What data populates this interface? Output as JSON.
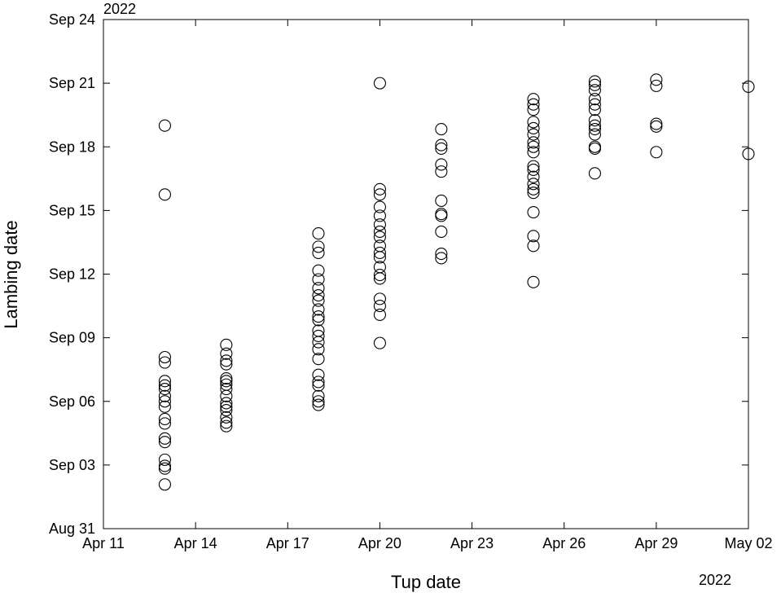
{
  "chart_data": {
    "type": "scatter",
    "xlabel": "Tup date",
    "ylabel": "Lambing date",
    "x_year_label": "2022",
    "y_year_label": "2022",
    "xlim": [
      "2022-04-11",
      "2022-05-02"
    ],
    "ylim": [
      "2022-08-31",
      "2022-09-24"
    ],
    "x_ticks": [
      {
        "date": "2022-04-11",
        "label": "Apr 11"
      },
      {
        "date": "2022-04-14",
        "label": "Apr 14"
      },
      {
        "date": "2022-04-17",
        "label": "Apr 17"
      },
      {
        "date": "2022-04-20",
        "label": "Apr 20"
      },
      {
        "date": "2022-04-23",
        "label": "Apr 23"
      },
      {
        "date": "2022-04-26",
        "label": "Apr 26"
      },
      {
        "date": "2022-04-29",
        "label": "Apr 29"
      },
      {
        "date": "2022-05-02",
        "label": "May 02"
      }
    ],
    "y_ticks": [
      {
        "date": "2022-08-31",
        "label": "Aug 31"
      },
      {
        "date": "2022-09-03",
        "label": "Sep 03"
      },
      {
        "date": "2022-09-06",
        "label": "Sep 06"
      },
      {
        "date": "2022-09-09",
        "label": "Sep 09"
      },
      {
        "date": "2022-09-12",
        "label": "Sep 12"
      },
      {
        "date": "2022-09-15",
        "label": "Sep 15"
      },
      {
        "date": "2022-09-18",
        "label": "Sep 18"
      },
      {
        "date": "2022-09-21",
        "label": "Sep 21"
      },
      {
        "date": "2022-09-24",
        "label": "Sep 24"
      }
    ],
    "grid": false,
    "marker": "open-circle",
    "marker_color": "#000000",
    "series": [
      {
        "points": [
          {
            "x": "2022-04-13",
            "y": [
              "Sep 19 00:00",
              "Sep 15 18:00",
              "Sep 08 02:00",
              "Sep 07 20:00",
              "Sep 06 23:00",
              "Sep 06 18:00",
              "Sep 06 14:00",
              "Sep 06 06:00",
              "Sep 06 00:00",
              "Sep 05 18:00",
              "Sep 05 04:00",
              "Sep 04 23:00",
              "Sep 04 06:00",
              "Sep 04 02:00",
              "Sep 03 06:00",
              "Sep 02 23:00",
              "Sep 02 20:00",
              "Sep 02 02:00"
            ]
          },
          {
            "x": "2022-04-15",
            "y": [
              "Sep 08 16:00",
              "Sep 08 06:00",
              "Sep 07 22:00",
              "Sep 07 18:00",
              "Sep 07 02:00",
              "Sep 06 23:00",
              "Sep 06 19:00",
              "Sep 06 14:00",
              "Sep 06 06:00",
              "Sep 05 22:00",
              "Sep 05 18:00",
              "Sep 05 14:00",
              "Sep 05 06:00",
              "Sep 05 00:00",
              "Sep 04 20:00"
            ]
          },
          {
            "x": "2022-04-18",
            "y": [
              "Sep 13 22:00",
              "Sep 13 07:00",
              "Sep 13 00:00",
              "Sep 12 04:00",
              "Sep 11 18:00",
              "Sep 11 08:00",
              "Sep 11 00:00",
              "Sep 10 18:00",
              "Sep 10 08:00",
              "Sep 10 00:00",
              "Sep 09 20:00",
              "Sep 09 08:00",
              "Sep 09 02:00",
              "Sep 08 19:00",
              "Sep 08 11:00",
              "Sep 08 00:00",
              "Sep 07 06:00",
              "Sep 06 22:00",
              "Sep 06 18:00",
              "Sep 06 06:00",
              "Sep 06 00:00",
              "Sep 05 20:00"
            ]
          },
          {
            "x": "2022-04-20",
            "y": [
              "Sep 21 00:00",
              "Sep 16 00:00",
              "Sep 15 18:00",
              "Sep 15 04:00",
              "Sep 14 18:00",
              "Sep 14 08:00",
              "Sep 14 00:00",
              "Sep 13 18:00",
              "Sep 13 08:00",
              "Sep 13 00:00",
              "Sep 12 19:00",
              "Sep 12 08:00",
              "Sep 11 23:00",
              "Sep 11 19:00",
              "Sep 10 20:00",
              "Sep 10 12:00",
              "Sep 10 02:00",
              "Sep 08 18:00"
            ]
          },
          {
            "x": "2022-04-22",
            "y": [
              "Sep 18 20:00",
              "Sep 18 02:00",
              "Sep 17 22:00",
              "Sep 17 04:00",
              "Sep 16 20:00",
              "Sep 15 11:00",
              "Sep 14 20:00",
              "Sep 14 18:00",
              "Sep 14 00:00",
              "Sep 12 23:00",
              "Sep 12 18:00"
            ]
          },
          {
            "x": "2022-04-25",
            "y": [
              "Sep 20 06:00",
              "Sep 20 00:00",
              "Sep 19 18:00",
              "Sep 19 04:00",
              "Sep 18 21:00",
              "Sep 18 14:00",
              "Sep 18 05:00",
              "Sep 18 00:00",
              "Sep 17 18:00",
              "Sep 17 02:00",
              "Sep 16 22:00",
              "Sep 16 14:00",
              "Sep 16 06:00",
              "Sep 16 00:00",
              "Sep 15 20:00",
              "Sep 14 22:00",
              "Sep 13 19:00",
              "Sep 13 08:00",
              "Sep 11 15:00"
            ]
          },
          {
            "x": "2022-04-27",
            "y": [
              "Sep 21 02:00",
              "Sep 20 22:00",
              "Sep 20 16:00",
              "Sep 20 06:00",
              "Sep 20 00:00",
              "Sep 19 18:00",
              "Sep 19 06:00",
              "Sep 19 00:00",
              "Sep 18 20:00",
              "Sep 18 14:00",
              "Sep 18 00:00",
              "Sep 17 22:00",
              "Sep 16 18:00"
            ]
          },
          {
            "x": "2022-04-29",
            "y": [
              "Sep 21 04:00",
              "Sep 20 21:00",
              "Sep 19 02:00",
              "Sep 18 23:00",
              "Sep 17 18:00"
            ]
          },
          {
            "x": "2022-05-02",
            "y": [
              "Sep 20 20:00",
              "Sep 17 16:00"
            ]
          }
        ]
      }
    ]
  }
}
